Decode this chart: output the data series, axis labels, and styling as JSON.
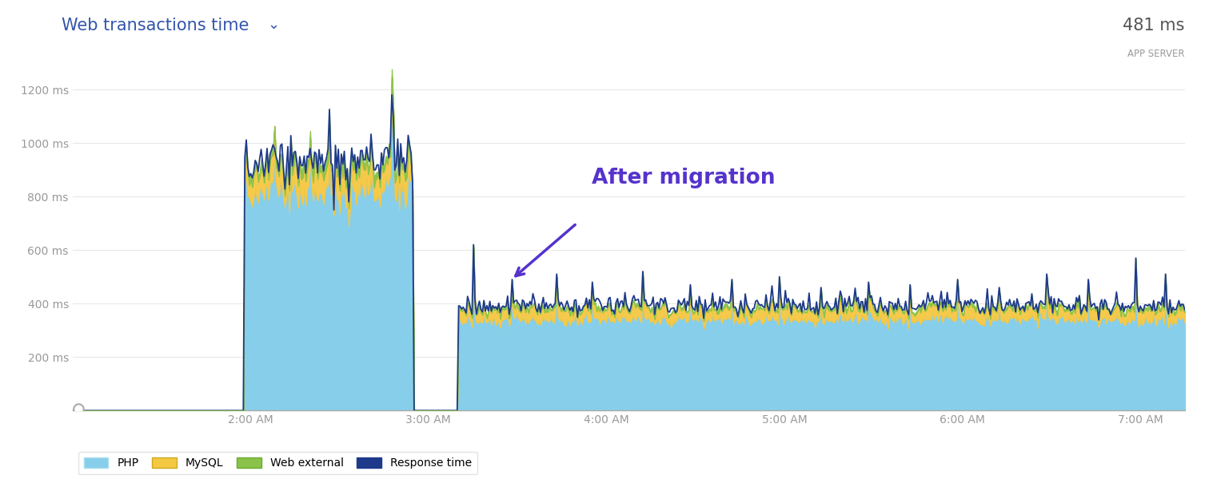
{
  "title_clean": "Web transactions time",
  "title_chevron": "⌄",
  "top_right_label": "481 ms",
  "top_right_sublabel": "APP SERVER",
  "ylabel_ticks": [
    "200 ms",
    "400 ms",
    "600 ms",
    "800 ms",
    "1000 ms",
    "1200 ms"
  ],
  "ytick_vals": [
    200,
    400,
    600,
    800,
    1000,
    1200
  ],
  "xtick_labels": [
    "2:00 AM",
    "3:00 AM",
    "4:00 AM",
    "5:00 AM",
    "6:00 AM",
    "7:00 AM"
  ],
  "annotation_text": "After migration",
  "bg_color": "#ffffff",
  "fill_color_php": "#87CEEB",
  "fill_color_mysql": "#F5C842",
  "fill_color_webext": "#8BC34A",
  "line_color_response": "#1E3A8A",
  "grid_color": "#e8e8e8",
  "axis_color": "#aaaaaa",
  "tick_color": "#999999",
  "annotation_color": "#5533CC",
  "title_color": "#3355AA",
  "top_right_color": "#555555",
  "legend_items": [
    {
      "label": "PHP",
      "color": "#87CEEB"
    },
    {
      "label": "MySQL",
      "color": "#F5C842"
    },
    {
      "label": "Web external",
      "color": "#8BC34A"
    },
    {
      "label": "Response time",
      "color": "#1E3A8A"
    }
  ]
}
